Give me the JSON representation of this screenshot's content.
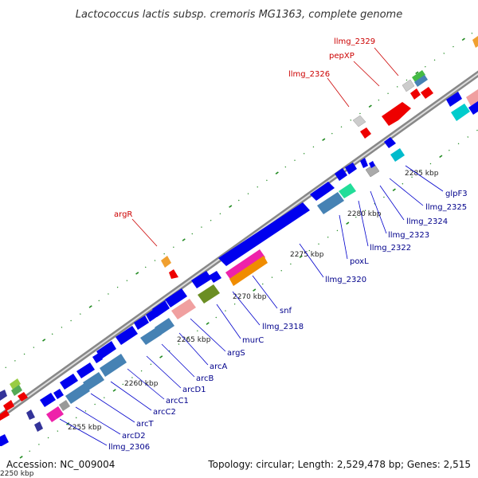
{
  "title": "Lactococcus lactis subsp. cremoris MG1363, complete genome",
  "footer": {
    "accession": "Accession: NC_009004",
    "summary": "Topology: circular; Length: 2,529,478 bp; Genes: 2,515"
  },
  "ticks": [
    "2250 kbp",
    "2255 kbp",
    "2260 kbp",
    "2265 kbp",
    "2270 kbp",
    "2275 kbp",
    "2280 kbp",
    "2285 kbp"
  ],
  "labels": {
    "llmg_2329": "llmg_2329",
    "pepxp": "pepXP",
    "llmg_2326": "llmg_2326",
    "argr": "argR",
    "glpf3": "glpF3",
    "llmg_2325": "llmg_2325",
    "llmg_2324": "llmg_2324",
    "llmg_2323": "llmg_2323",
    "llmg_2322": "llmg_2322",
    "poxl": "poxL",
    "llmg_2320": "llmg_2320",
    "snf": "snf",
    "llmg_2318": "llmg_2318",
    "murc": "murC",
    "args": "argS",
    "arca": "arcA",
    "arcb": "arcB",
    "arcd1": "arcD1",
    "arcc1": "arcC1",
    "arcc2": "arcC2",
    "arct": "arcT",
    "arcd2": "arcD2",
    "llmg_2306": "llmg_2306"
  },
  "colors": {
    "forward_label": "#cc0000",
    "reverse_label": "#00008b",
    "cds": "#0000ee",
    "backbone": "#999999",
    "tick_dot": "#228b22"
  }
}
